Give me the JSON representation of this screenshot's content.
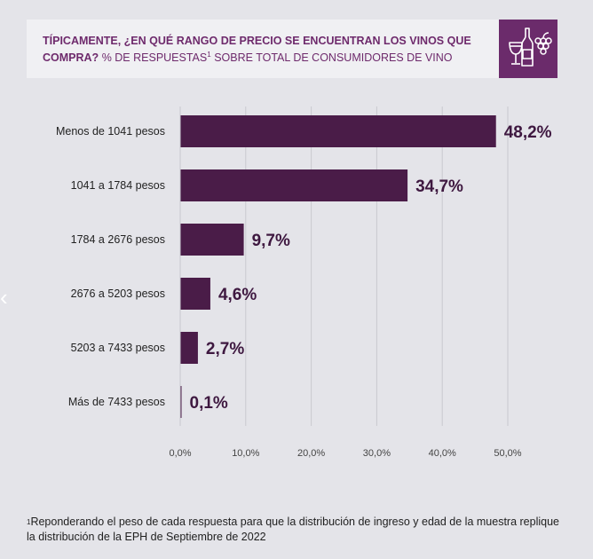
{
  "header": {
    "title_bold": "TÍPICAMENTE, ¿EN QUÉ RANGO DE PRECIO SE ENCUENTRAN LOS VINOS QUE COMPRA?",
    "title_rest": "% DE RESPUESTAS",
    "title_sup": "1",
    "title_tail": "SOBRE TOTAL DE CONSUMIDORES DE VINO",
    "icon": "wine-bottle-glass-grapes-icon"
  },
  "nav": {
    "prev_icon": "chevron-left-icon",
    "prev_glyph": "‹"
  },
  "chart_data": {
    "type": "bar",
    "orientation": "horizontal",
    "categories": [
      "Menos de 1041 pesos",
      "1041 a 1784 pesos",
      "1784 a 2676 pesos",
      "2676 a 5203 pesos",
      "5203 a 7433 pesos",
      "Más de 7433 pesos"
    ],
    "values": [
      48.2,
      34.7,
      9.7,
      4.6,
      2.7,
      0.1
    ],
    "value_labels": [
      "48,2%",
      "34,7%",
      "9,7%",
      "4,6%",
      "2,7%",
      "0,1%"
    ],
    "xticks": [
      0,
      10,
      20,
      30,
      40,
      50
    ],
    "xtick_labels": [
      "0,0%",
      "10,0%",
      "20,0%",
      "30,0%",
      "40,0%",
      "50,0%"
    ],
    "xlim": [
      0,
      50
    ],
    "grid": true,
    "bar_color": "#4a1c48",
    "label_color": "#3e1840",
    "grid_color": "#c9c9cf"
  },
  "footnote": {
    "sup": "1",
    "text": "Reponderando el peso de cada respuesta para que la distribución de ingreso y edad de la muestra replique la distribución de la EPH de Septiembre de 2022"
  }
}
